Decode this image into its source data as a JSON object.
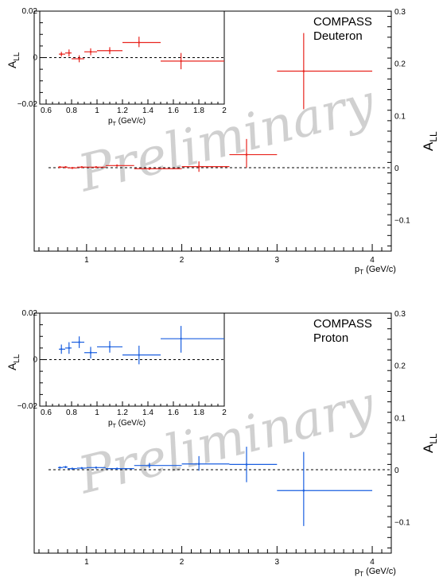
{
  "watermark": "Preliminary",
  "colors": {
    "deuteron": "#e8251f",
    "proton": "#1a5fe0",
    "axes": "#000000"
  },
  "chart_data": [
    {
      "type": "scatter",
      "id": "deuteron",
      "label_line1": "COMPASS",
      "label_line2": "Deuteron",
      "color": "#e8251f",
      "main": {
        "xlabel_base": "p",
        "xlabel_sub": "T",
        "xlabel_rest": " (GeV/c)",
        "ylabel_base": "A",
        "ylabel_sub": "LL",
        "xlim": [
          0.45,
          4.2
        ],
        "ylim": [
          -0.16,
          0.3
        ],
        "xticks": [
          "1",
          "2",
          "3",
          "4"
        ],
        "yticks": [
          "0.3",
          "0.2",
          "0.1",
          "0",
          "−0.1"
        ],
        "ytick_values": [
          0.3,
          0.2,
          0.1,
          0,
          -0.1
        ],
        "points": [
          {
            "x": 0.72,
            "xlo": 0.7,
            "xhi": 0.75,
            "y": 0.001,
            "ylo": 0.0,
            "yhi": 0.002
          },
          {
            "x": 0.78,
            "xlo": 0.75,
            "xhi": 0.8,
            "y": 0.001,
            "ylo": 0.0,
            "yhi": 0.002
          },
          {
            "x": 0.85,
            "xlo": 0.8,
            "xhi": 0.9,
            "y": -0.0005,
            "ylo": -0.0015,
            "yhi": 0.0005
          },
          {
            "x": 0.95,
            "xlo": 0.9,
            "xhi": 1.0,
            "y": 0.001,
            "ylo": 0.0,
            "yhi": 0.002
          },
          {
            "x": 1.1,
            "xlo": 1.0,
            "xhi": 1.2,
            "y": 0.001,
            "ylo": 0.0,
            "yhi": 0.002
          },
          {
            "x": 1.32,
            "xlo": 1.2,
            "xhi": 1.5,
            "y": 0.004,
            "ylo": 0.003,
            "yhi": 0.005
          },
          {
            "x": 1.66,
            "xlo": 1.5,
            "xhi": 2.0,
            "y": -0.002,
            "ylo": -0.004,
            "yhi": 0.0
          },
          {
            "x": 2.18,
            "xlo": 2.0,
            "xhi": 2.5,
            "y": 0.002,
            "ylo": -0.008,
            "yhi": 0.012
          },
          {
            "x": 2.68,
            "xlo": 2.5,
            "xhi": 3.0,
            "y": 0.025,
            "ylo": 0.0,
            "yhi": 0.055
          },
          {
            "x": 3.28,
            "xlo": 3.0,
            "xhi": 4.0,
            "y": 0.185,
            "ylo": 0.112,
            "yhi": 0.258
          }
        ]
      },
      "inset": {
        "xlabel_base": "p",
        "xlabel_sub": "T",
        "xlabel_rest": " (GeV/c)",
        "ylabel_base": "A",
        "ylabel_sub": "LL",
        "xlim": [
          0.55,
          2.0
        ],
        "ylim": [
          -0.02,
          0.02
        ],
        "xticks": [
          "0.6",
          "0.8",
          "1",
          "1.2",
          "1.4",
          "1.6",
          "1.8",
          "2"
        ],
        "xtick_values": [
          0.6,
          0.8,
          1.0,
          1.2,
          1.4,
          1.6,
          1.8,
          2.0
        ],
        "yticks": [
          "0.02",
          "0",
          "−0.02"
        ],
        "ytick_values": [
          0.02,
          0,
          -0.02
        ],
        "points": [
          {
            "x": 0.72,
            "xlo": 0.7,
            "xhi": 0.75,
            "y": 0.0015,
            "ylo": 0.0005,
            "yhi": 0.0025
          },
          {
            "x": 0.78,
            "xlo": 0.75,
            "xhi": 0.8,
            "y": 0.002,
            "ylo": 0.0005,
            "yhi": 0.0035
          },
          {
            "x": 0.86,
            "xlo": 0.8,
            "xhi": 0.9,
            "y": -0.0005,
            "ylo": -0.002,
            "yhi": 0.001
          },
          {
            "x": 0.95,
            "xlo": 0.9,
            "xhi": 1.0,
            "y": 0.0025,
            "ylo": 0.001,
            "yhi": 0.004
          },
          {
            "x": 1.1,
            "xlo": 1.0,
            "xhi": 1.2,
            "y": 0.003,
            "ylo": 0.0015,
            "yhi": 0.0045
          },
          {
            "x": 1.33,
            "xlo": 1.2,
            "xhi": 1.5,
            "y": 0.0065,
            "ylo": 0.0045,
            "yhi": 0.009
          },
          {
            "x": 1.66,
            "xlo": 1.5,
            "xhi": 2.0,
            "y": -0.0015,
            "ylo": -0.005,
            "yhi": 0.002
          }
        ]
      }
    },
    {
      "type": "scatter",
      "id": "proton",
      "label_line1": "COMPASS",
      "label_line2": "Proton",
      "color": "#1a5fe0",
      "main": {
        "xlabel_base": "p",
        "xlabel_sub": "T",
        "xlabel_rest": " (GeV/c)",
        "ylabel_base": "A",
        "ylabel_sub": "LL",
        "xlim": [
          0.45,
          4.2
        ],
        "ylim": [
          -0.16,
          0.3
        ],
        "xticks": [
          "1",
          "2",
          "3",
          "4"
        ],
        "yticks": [
          "0.3",
          "0.2",
          "0.1",
          "0",
          "−0.1"
        ],
        "ytick_values": [
          0.3,
          0.2,
          0.1,
          0,
          -0.1
        ],
        "points": [
          {
            "x": 0.72,
            "xlo": 0.7,
            "xhi": 0.75,
            "y": 0.004,
            "ylo": 0.003,
            "yhi": 0.005
          },
          {
            "x": 0.78,
            "xlo": 0.75,
            "xhi": 0.8,
            "y": 0.005,
            "ylo": 0.003,
            "yhi": 0.007
          },
          {
            "x": 0.85,
            "xlo": 0.8,
            "xhi": 0.9,
            "y": 0.002,
            "ylo": 0.001,
            "yhi": 0.003
          },
          {
            "x": 0.95,
            "xlo": 0.9,
            "xhi": 1.0,
            "y": 0.003,
            "ylo": 0.002,
            "yhi": 0.004
          },
          {
            "x": 1.1,
            "xlo": 1.0,
            "xhi": 1.2,
            "y": 0.004,
            "ylo": 0.003,
            "yhi": 0.005
          },
          {
            "x": 1.32,
            "xlo": 1.2,
            "xhi": 1.5,
            "y": 0.002,
            "ylo": 0.001,
            "yhi": 0.003
          },
          {
            "x": 1.66,
            "xlo": 1.5,
            "xhi": 2.0,
            "y": 0.008,
            "ylo": 0.003,
            "yhi": 0.013
          },
          {
            "x": 2.18,
            "xlo": 2.0,
            "xhi": 2.5,
            "y": 0.011,
            "ylo": -0.002,
            "yhi": 0.026
          },
          {
            "x": 2.68,
            "xlo": 2.5,
            "xhi": 3.0,
            "y": 0.01,
            "ylo": -0.024,
            "yhi": 0.044
          },
          {
            "x": 3.28,
            "xlo": 3.0,
            "xhi": 4.0,
            "y": -0.04,
            "ylo": -0.108,
            "yhi": 0.034
          }
        ]
      },
      "inset": {
        "xlabel_base": "p",
        "xlabel_sub": "T",
        "xlabel_rest": " (GeV/c)",
        "ylabel_base": "A",
        "ylabel_sub": "LL",
        "xlim": [
          0.55,
          2.0
        ],
        "ylim": [
          -0.02,
          0.02
        ],
        "xticks": [
          "0.6",
          "0.8",
          "1",
          "1.2",
          "1.4",
          "1.6",
          "1.8",
          "2"
        ],
        "xtick_values": [
          0.6,
          0.8,
          1.0,
          1.2,
          1.4,
          1.6,
          1.8,
          2.0
        ],
        "yticks": [
          "0.02",
          "0",
          "−0.02"
        ],
        "ytick_values": [
          0.02,
          0,
          -0.02
        ],
        "points": [
          {
            "x": 0.72,
            "xlo": 0.7,
            "xhi": 0.75,
            "y": 0.0045,
            "ylo": 0.0025,
            "yhi": 0.0065
          },
          {
            "x": 0.78,
            "xlo": 0.75,
            "xhi": 0.8,
            "y": 0.005,
            "ylo": 0.0025,
            "yhi": 0.0075
          },
          {
            "x": 0.86,
            "xlo": 0.8,
            "xhi": 0.9,
            "y": 0.0075,
            "ylo": 0.005,
            "yhi": 0.01
          },
          {
            "x": 0.95,
            "xlo": 0.9,
            "xhi": 1.0,
            "y": 0.003,
            "ylo": 0.0005,
            "yhi": 0.0055
          },
          {
            "x": 1.1,
            "xlo": 1.0,
            "xhi": 1.2,
            "y": 0.0055,
            "ylo": 0.003,
            "yhi": 0.008
          },
          {
            "x": 1.33,
            "xlo": 1.2,
            "xhi": 1.5,
            "y": 0.002,
            "ylo": -0.002,
            "yhi": 0.006
          },
          {
            "x": 1.66,
            "xlo": 1.5,
            "xhi": 2.0,
            "y": 0.009,
            "ylo": 0.003,
            "yhi": 0.0145
          }
        ]
      }
    }
  ]
}
